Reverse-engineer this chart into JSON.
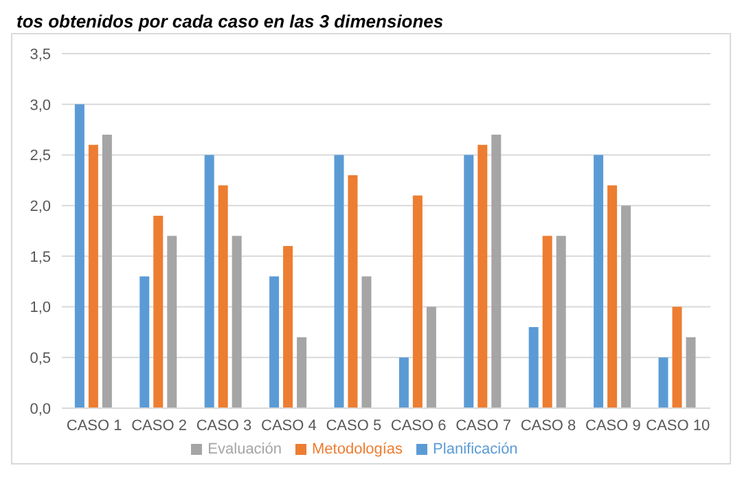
{
  "chart_data": {
    "type": "bar",
    "title": "tos obtenidos por cada caso en las 3 dimensiones",
    "categories": [
      "CASO 1",
      "CASO 2",
      "CASO 3",
      "CASO 4",
      "CASO 5",
      "CASO 6",
      "CASO 7",
      "CASO 8",
      "CASO 9",
      "CASO 10"
    ],
    "series": [
      {
        "name": "Planificación",
        "color": "#5b9bd5",
        "values": [
          3.0,
          1.3,
          2.5,
          1.3,
          2.5,
          0.5,
          2.5,
          0.8,
          2.5,
          0.5
        ]
      },
      {
        "name": "Metodologías",
        "color": "#ed7d31",
        "values": [
          2.6,
          1.9,
          2.2,
          1.6,
          2.3,
          2.1,
          2.6,
          1.7,
          2.2,
          1.0
        ]
      },
      {
        "name": "Evaluación",
        "color": "#a5a5a5",
        "values": [
          2.7,
          1.7,
          1.7,
          0.7,
          1.3,
          1.0,
          2.7,
          1.7,
          2.0,
          0.7
        ]
      }
    ],
    "ylim": [
      0,
      3.5
    ],
    "yticks": [
      {
        "value": 0,
        "label": "0,0"
      },
      {
        "value": 0.5,
        "label": "0,5"
      },
      {
        "value": 1,
        "label": "1,0"
      },
      {
        "value": 1.5,
        "label": "1,5"
      },
      {
        "value": 2,
        "label": "2,0"
      },
      {
        "value": 2.5,
        "label": "2,5"
      },
      {
        "value": 3,
        "label": "3,0"
      },
      {
        "value": 3.5,
        "label": "3,5"
      }
    ],
    "grid": "y",
    "legend": "bottom"
  }
}
